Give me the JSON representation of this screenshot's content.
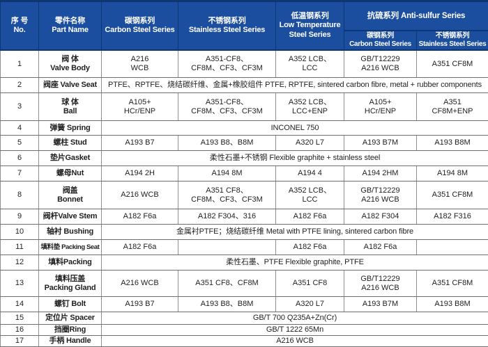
{
  "table": {
    "header": {
      "no": "序 号\nNo.",
      "part_name": "零件名称\nPart Name",
      "carbon_steel": "碳钢系列\nCarbon Steel Series",
      "stainless_steel": "不锈钢系列\nStainless Steel Series",
      "low_temp": "低温钢系列\nLow Temperature\nSteel Series",
      "anti_sulfur_group": "抗硫系列 Anti-sulfur Series",
      "anti_sulfur_carbon": "碳钢系列\nCarbon Steel Series",
      "anti_sulfur_stainless": "不锈钢系列\nStainless Steel Series"
    },
    "rows": [
      {
        "no": "1",
        "name": "阀  体\nValve Body",
        "cells": [
          "A216\nWCB",
          "A351-CF8、\nCF8M、CF3、CF3M",
          "A352 LCB、\nLCC",
          "GB/T12229\nA216 WCB",
          "A351 CF8M"
        ]
      },
      {
        "no": "2",
        "name": "阀座 Valve Seat",
        "span": "PTFE、RPTFE、烧结碳纤维、金属+橡胶组件  PTFE, RPTFE, sintered carbon fibre, metal + rubber components"
      },
      {
        "no": "3",
        "name": "球  体\nBall",
        "cells": [
          "A105+\nHCr/ENP",
          "A351-CF8、\nCF8M、CF3、CF3M",
          "A352 LCB、\nLCC+ENP",
          "A105+\nHCr/ENP",
          "A351\nCF8M+ENP"
        ]
      },
      {
        "no": "4",
        "name": "弹簧 Spring",
        "span": "INCONEL 750"
      },
      {
        "no": "5",
        "name": "螺柱 Stud",
        "cells": [
          "A193 B7",
          "A193 B8、B8M",
          "A320 L7",
          "A193 B7M",
          "A193 B8M"
        ]
      },
      {
        "no": "6",
        "name": "垫片Gasket",
        "span": "柔性石墨+不锈钢  Flexible graphite + stainless steel"
      },
      {
        "no": "7",
        "name": "螺母Nut",
        "cells": [
          "A194 2H",
          "A194 8M",
          "A194 4",
          "A194 2HM",
          "A194 8M"
        ]
      },
      {
        "no": "8",
        "name": "阀盖\nBonnet",
        "cells": [
          "A216 WCB",
          "A351 CF8、\nCF8M、CF3、CF3M",
          "A352 LCB、\nLCC",
          "GB/T12229\nA216 WCB",
          "A351 CF8M"
        ]
      },
      {
        "no": "9",
        "name": "阀杆Valve Stem",
        "cells": [
          "A182 F6a",
          "A182 F304、316",
          "A182 F6a",
          "A182 F304",
          "A182 F316"
        ]
      },
      {
        "no": "10",
        "name": "轴衬 Bushing",
        "span": "金属衬PTFE；烧结碳纤维  Metal with PTFE lining, sintered carbon fibre"
      },
      {
        "no": "11",
        "name": "填料垫 Packing Seat",
        "cells": [
          "A182 F6a",
          "",
          "A182 F6a",
          "A182 F6a",
          ""
        ]
      },
      {
        "no": "12",
        "name": "填料Packing",
        "span": "柔性石墨、PTFE   Flexible graphite, PTFE"
      },
      {
        "no": "13",
        "name": "填料压盖\nPacking Gland",
        "cells": [
          "A216 WCB",
          "A351 CF8、CF8M",
          "A351 CF8",
          "GB/T12229\nA216 WCB",
          "A351 CF8M"
        ]
      },
      {
        "no": "14",
        "name": "螺钉 Bolt",
        "cells": [
          "A193 B7",
          "A193 B8、B8M",
          "A320 L7",
          "A193 B7M",
          "A193 B8M"
        ]
      },
      {
        "no": "15",
        "name": "定位片 Spacer",
        "span": "GB/T 700 Q235A+Zn(Cr)"
      },
      {
        "no": "16",
        "name": "挡圈Ring",
        "span": "GB/T 1222 65Mn"
      },
      {
        "no": "17",
        "name": "手柄 Handle",
        "span": "A216 WCB"
      }
    ]
  },
  "colors": {
    "header_bg": "#1b4e9e",
    "header_edge": "#0e3672",
    "header_text": "#ffffff",
    "grid_vertical": "#8f8f8f",
    "grid_horizontal": "#6e6e6e",
    "body_text": "#1f1f1f",
    "body_bg": "#ffffff"
  }
}
